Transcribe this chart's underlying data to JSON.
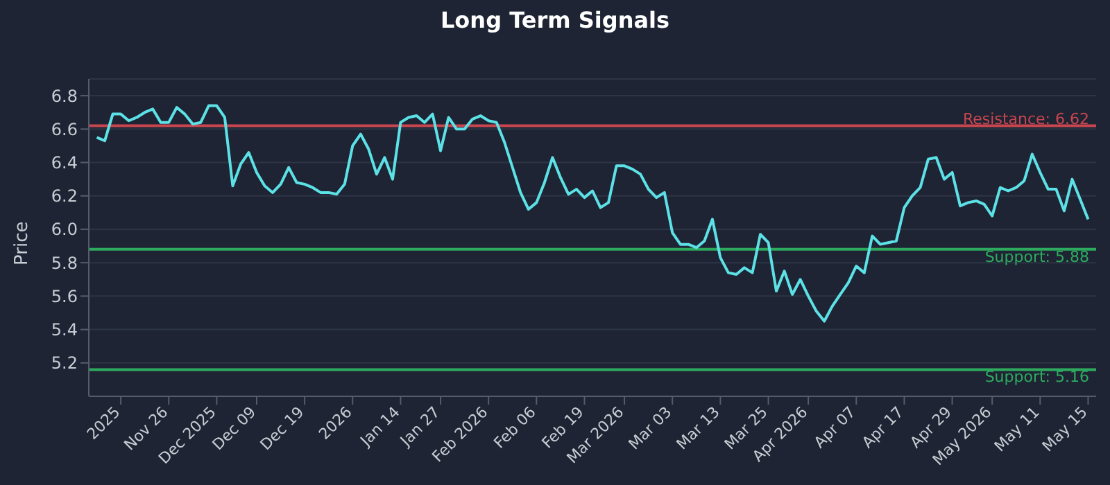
{
  "chart_data": {
    "type": "line",
    "title": "Long Term Signals",
    "ylabel": "Price",
    "categories": [
      null,
      null,
      null,
      "2025",
      null,
      null,
      null,
      null,
      null,
      "Nov 26",
      null,
      null,
      null,
      null,
      null,
      "Dec 2025",
      null,
      null,
      null,
      null,
      "Dec 09",
      null,
      null,
      null,
      null,
      null,
      "Dec 19",
      null,
      null,
      null,
      null,
      null,
      "2026",
      null,
      null,
      null,
      null,
      null,
      "Jan 14",
      null,
      null,
      null,
      null,
      "Jan 27",
      null,
      null,
      null,
      null,
      null,
      "Feb 2026",
      null,
      null,
      null,
      null,
      null,
      "Feb 06",
      null,
      null,
      null,
      null,
      null,
      "Feb 19",
      null,
      null,
      null,
      null,
      "Mar 2026",
      null,
      null,
      null,
      null,
      null,
      "Mar 03",
      null,
      null,
      null,
      null,
      null,
      "Mar 13",
      null,
      null,
      null,
      null,
      null,
      "Mar 25",
      null,
      null,
      null,
      null,
      "Apr 2026",
      null,
      null,
      null,
      null,
      null,
      "Apr 07",
      null,
      null,
      null,
      null,
      null,
      "Apr 17",
      null,
      null,
      null,
      null,
      null,
      "Apr 29",
      null,
      null,
      null,
      null,
      "May 2026",
      null,
      null,
      null,
      null,
      null,
      "May 11",
      null,
      null,
      null,
      null,
      null,
      "May 15"
    ],
    "series": [
      {
        "color": "#5ce1e6",
        "values": [
          6.55,
          6.53,
          6.69,
          6.69,
          6.65,
          6.67,
          6.7,
          6.72,
          6.64,
          6.64,
          6.73,
          6.69,
          6.63,
          6.64,
          6.74,
          6.74,
          6.67,
          6.26,
          6.39,
          6.46,
          6.34,
          6.26,
          6.22,
          6.27,
          6.37,
          6.28,
          6.27,
          6.25,
          6.22,
          6.22,
          6.21,
          6.27,
          6.5,
          6.57,
          6.48,
          6.33,
          6.43,
          6.3,
          6.64,
          6.67,
          6.68,
          6.64,
          6.69,
          6.47,
          6.67,
          6.6,
          6.6,
          6.66,
          6.68,
          6.65,
          6.64,
          6.52,
          6.37,
          6.22,
          6.12,
          6.16,
          6.28,
          6.43,
          6.31,
          6.21,
          6.24,
          6.19,
          6.23,
          6.13,
          6.16,
          6.38,
          6.38,
          6.36,
          6.33,
          6.24,
          6.19,
          6.22,
          5.98,
          5.91,
          5.91,
          5.89,
          5.93,
          6.06,
          5.83,
          5.74,
          5.73,
          5.77,
          5.74,
          5.97,
          5.92,
          5.63,
          5.75,
          5.61,
          5.7,
          5.6,
          5.51,
          5.45,
          5.54,
          5.61,
          5.68,
          5.78,
          5.74,
          5.96,
          5.91,
          5.92,
          5.93,
          6.13,
          6.2,
          6.25,
          6.42,
          6.43,
          6.3,
          6.34,
          6.14,
          6.16,
          6.17,
          6.15,
          6.08,
          6.25,
          6.23,
          6.25,
          6.29,
          6.45,
          6.34,
          6.24,
          6.24,
          6.11,
          6.3,
          6.18,
          6.06
        ]
      }
    ],
    "ylim": [
      5.0,
      6.9
    ],
    "yticks": [
      {
        "value": 5.2,
        "label": "5.2"
      },
      {
        "value": 5.4,
        "label": "5.4"
      },
      {
        "value": 5.6,
        "label": "5.6"
      },
      {
        "value": 5.8,
        "label": "5.8"
      },
      {
        "value": 6.0,
        "label": "6.0"
      },
      {
        "value": 6.2,
        "label": "6.2"
      },
      {
        "value": 6.4,
        "label": "6.4"
      },
      {
        "value": 6.6,
        "label": "6.6"
      },
      {
        "value": 6.8,
        "label": "6.8"
      }
    ],
    "ref_lines": [
      {
        "axis": "y",
        "value": 6.62,
        "label": "Resistance: 6.62",
        "color": "#c8464f"
      },
      {
        "axis": "y",
        "value": 5.88,
        "label": "Support: 5.88",
        "color": "#2eaa5f"
      },
      {
        "axis": "y",
        "value": 5.16,
        "label": "Support: 5.16",
        "color": "#2eaa5f"
      }
    ],
    "grid": "y",
    "marker": "none",
    "line_style": "solid"
  }
}
